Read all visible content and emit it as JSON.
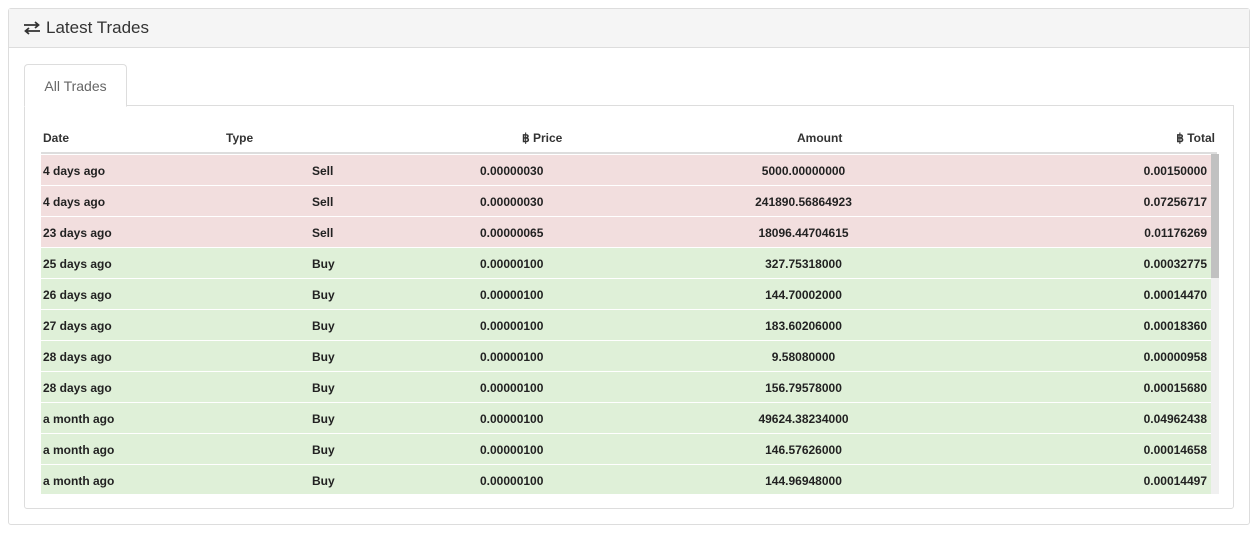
{
  "panel": {
    "title": "Latest Trades",
    "icon": "exchange-arrows-icon"
  },
  "tabs": [
    {
      "label": "All Trades",
      "active": true
    }
  ],
  "table": {
    "headers": {
      "date": "Date",
      "type": "Type",
      "price": "฿ Price",
      "amount": "Amount",
      "total": "฿ Total"
    },
    "rows": [
      {
        "date": "4 days ago",
        "type": "Sell",
        "price": "0.00000030",
        "amount": "5000.00000000",
        "total": "0.00150000"
      },
      {
        "date": "4 days ago",
        "type": "Sell",
        "price": "0.00000030",
        "amount": "241890.56864923",
        "total": "0.07256717"
      },
      {
        "date": "23 days ago",
        "type": "Sell",
        "price": "0.00000065",
        "amount": "18096.44704615",
        "total": "0.01176269"
      },
      {
        "date": "25 days ago",
        "type": "Buy",
        "price": "0.00000100",
        "amount": "327.75318000",
        "total": "0.00032775"
      },
      {
        "date": "26 days ago",
        "type": "Buy",
        "price": "0.00000100",
        "amount": "144.70002000",
        "total": "0.00014470"
      },
      {
        "date": "27 days ago",
        "type": "Buy",
        "price": "0.00000100",
        "amount": "183.60206000",
        "total": "0.00018360"
      },
      {
        "date": "28 days ago",
        "type": "Buy",
        "price": "0.00000100",
        "amount": "9.58080000",
        "total": "0.00000958"
      },
      {
        "date": "28 days ago",
        "type": "Buy",
        "price": "0.00000100",
        "amount": "156.79578000",
        "total": "0.00015680"
      },
      {
        "date": "a month ago",
        "type": "Buy",
        "price": "0.00000100",
        "amount": "49624.38234000",
        "total": "0.04962438"
      },
      {
        "date": "a month ago",
        "type": "Buy",
        "price": "0.00000100",
        "amount": "146.57626000",
        "total": "0.00014658"
      },
      {
        "date": "a month ago",
        "type": "Buy",
        "price": "0.00000100",
        "amount": "144.96948000",
        "total": "0.00014497"
      }
    ]
  },
  "colors": {
    "sell_row": "#f2dede",
    "buy_row": "#dff0d8"
  }
}
